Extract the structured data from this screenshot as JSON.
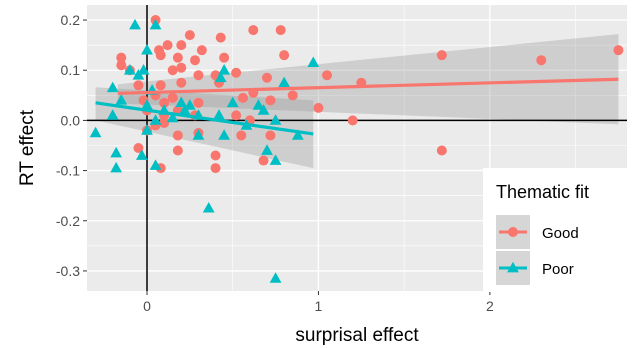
{
  "chart_data": {
    "type": "scatter",
    "xlabel": "surprisal effect",
    "ylabel": "RT effect",
    "xlim": [
      -0.35,
      2.8
    ],
    "ylim": [
      -0.34,
      0.23
    ],
    "x_ticks": [
      0,
      1,
      2
    ],
    "x_tick_labels": [
      "0",
      "1",
      "2"
    ],
    "y_ticks": [
      -0.3,
      -0.2,
      -0.1,
      0.0,
      0.1,
      0.2
    ],
    "y_tick_labels": [
      "-0.3",
      "-0.2",
      "-0.1",
      "0.0",
      "0.1",
      "0.2"
    ],
    "grid": true,
    "reference_lines": {
      "x": 0,
      "y": 0
    },
    "legend": {
      "title": "Thematic fit",
      "placement": "bottom-right"
    },
    "series": [
      {
        "name": "Good",
        "marker": "circle",
        "color": "#F8766D",
        "points": [
          [
            0.05,
            0.2
          ],
          [
            0.25,
            0.17
          ],
          [
            0.62,
            0.18
          ],
          [
            0.78,
            0.18
          ],
          [
            -0.15,
            0.125
          ],
          [
            0.07,
            0.14
          ],
          [
            0.12,
            0.15
          ],
          [
            0.2,
            0.15
          ],
          [
            0.32,
            0.14
          ],
          [
            0.43,
            0.165
          ],
          [
            0.08,
            0.13
          ],
          [
            0.18,
            0.125
          ],
          [
            0.28,
            0.12
          ],
          [
            0.45,
            0.125
          ],
          [
            0.8,
            0.13
          ],
          [
            1.72,
            0.13
          ],
          [
            2.3,
            0.12
          ],
          [
            2.75,
            0.14
          ],
          [
            -0.15,
            0.11
          ],
          [
            -0.1,
            0.1
          ],
          [
            0.15,
            0.1
          ],
          [
            0.2,
            0.105
          ],
          [
            0.3,
            0.09
          ],
          [
            0.4,
            0.09
          ],
          [
            0.52,
            0.095
          ],
          [
            0.7,
            0.085
          ],
          [
            1.05,
            0.09
          ],
          [
            1.25,
            0.075
          ],
          [
            -0.05,
            0.07
          ],
          [
            0.08,
            0.07
          ],
          [
            0.2,
            0.075
          ],
          [
            0.42,
            0.075
          ],
          [
            0.62,
            0.055
          ],
          [
            0.72,
            0.04
          ],
          [
            0.85,
            0.05
          ],
          [
            -0.02,
            0.04
          ],
          [
            0.05,
            0.05
          ],
          [
            0.1,
            0.035
          ],
          [
            0.15,
            0.045
          ],
          [
            0.3,
            0.035
          ],
          [
            0.56,
            0.045
          ],
          [
            0.0,
            0.02
          ],
          [
            0.1,
            0.01
          ],
          [
            0.18,
            0.02
          ],
          [
            0.28,
            0.01
          ],
          [
            0.52,
            0.01
          ],
          [
            0.6,
            0.0
          ],
          [
            1.0,
            0.025
          ],
          [
            1.2,
            0.0
          ],
          [
            0.0,
            -0.02
          ],
          [
            0.05,
            -0.01
          ],
          [
            0.1,
            -0.005
          ],
          [
            0.18,
            -0.03
          ],
          [
            0.3,
            -0.025
          ],
          [
            0.55,
            -0.03
          ],
          [
            0.72,
            -0.03
          ],
          [
            -0.05,
            -0.055
          ],
          [
            0.18,
            -0.06
          ],
          [
            0.4,
            -0.07
          ],
          [
            0.68,
            -0.08
          ],
          [
            1.72,
            -0.06
          ],
          [
            0.08,
            -0.095
          ],
          [
            0.4,
            -0.095
          ]
        ]
      },
      {
        "name": "Poor",
        "marker": "triangle",
        "color": "#00BFC4",
        "points": [
          [
            -0.07,
            0.19
          ],
          [
            0.0,
            0.14
          ],
          [
            0.05,
            0.19
          ],
          [
            -0.1,
            0.1
          ],
          [
            -0.02,
            0.1
          ],
          [
            0.97,
            0.115
          ],
          [
            0.45,
            0.1
          ],
          [
            -0.2,
            0.065
          ],
          [
            -0.05,
            0.09
          ],
          [
            0.03,
            0.06
          ],
          [
            0.43,
            0.085
          ],
          [
            0.8,
            0.075
          ],
          [
            -0.15,
            0.04
          ],
          [
            0.0,
            0.03
          ],
          [
            0.1,
            0.02
          ],
          [
            0.2,
            0.035
          ],
          [
            0.22,
            0.02
          ],
          [
            0.25,
            0.03
          ],
          [
            0.5,
            0.035
          ],
          [
            0.65,
            0.03
          ],
          [
            -0.2,
            0.01
          ],
          [
            0.05,
            0.0
          ],
          [
            0.15,
            0.005
          ],
          [
            0.3,
            0.01
          ],
          [
            0.42,
            0.01
          ],
          [
            0.68,
            0.02
          ],
          [
            0.75,
            0.0
          ],
          [
            -0.3,
            -0.025
          ],
          [
            0.0,
            -0.02
          ],
          [
            0.3,
            -0.03
          ],
          [
            0.45,
            -0.03
          ],
          [
            0.58,
            -0.01
          ],
          [
            0.88,
            -0.03
          ],
          [
            -0.18,
            -0.065
          ],
          [
            -0.03,
            -0.07
          ],
          [
            0.7,
            -0.06
          ],
          [
            -0.18,
            -0.095
          ],
          [
            0.05,
            -0.09
          ],
          [
            0.75,
            -0.08
          ],
          [
            0.36,
            -0.175
          ],
          [
            0.75,
            -0.315
          ]
        ]
      }
    ],
    "fits": [
      {
        "series": "Good",
        "x": [
          -0.17,
          2.75
        ],
        "y": [
          0.054,
          0.082
        ],
        "ci_lower": [
          0.034,
          -0.008
        ],
        "ci_upper": [
          0.072,
          0.172
        ]
      },
      {
        "series": "Poor",
        "x": [
          -0.3,
          0.97
        ],
        "y": [
          0.035,
          -0.027
        ],
        "ci_lower": [
          0.0,
          -0.095
        ],
        "ci_upper": [
          0.066,
          0.04
        ]
      }
    ],
    "colors": {
      "panel_background": "#EBEBEB",
      "gridline": "#FFFFFF",
      "reference_line": "#000000",
      "ribbon": "#999999"
    }
  }
}
